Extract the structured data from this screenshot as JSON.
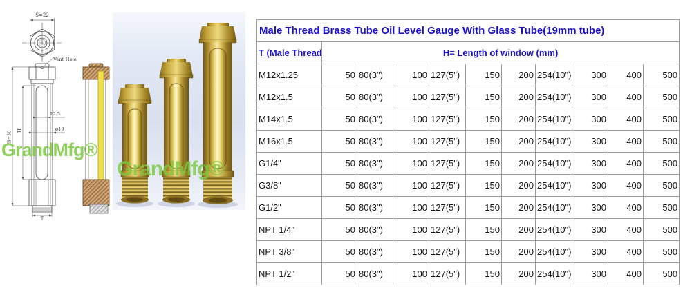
{
  "branding": {
    "watermark": "GrandMfg®",
    "watermark_color": "#7cc93e"
  },
  "diagram": {
    "dim_s": "S=22",
    "vent_label": "Vent Hole",
    "dim_window_width": "12.5",
    "dim_diameter": "ø19",
    "dim_h": "H",
    "dim_b": "B=30",
    "dim_t": "T",
    "glass_color": "#f2e14e",
    "hatch_color": "#8a4a1e"
  },
  "photo": {
    "description": "three brass oil level gauges",
    "background_color": "#dde4f2",
    "brass_color": "#caa53a"
  },
  "table": {
    "title": "Male Thread Brass Tube Oil Level Gauge With Glass Tube(19mm tube)",
    "thread_header": "T (Male Thread)",
    "window_header": "H= Length of window (mm)",
    "title_color": "#1a12c8",
    "border_color": "#9b9b9b",
    "rows": [
      {
        "thread": "M12x1.25",
        "values": [
          "50",
          "80(3\")",
          "100",
          "127(5\")",
          "150",
          "200",
          "254(10\")",
          "300",
          "400",
          "500"
        ]
      },
      {
        "thread": "M12x1.5",
        "values": [
          "50",
          "80(3\")",
          "100",
          "127(5\")",
          "150",
          "200",
          "254(10\")",
          "300",
          "400",
          "500"
        ]
      },
      {
        "thread": "M14x1.5",
        "values": [
          "50",
          "80(3\")",
          "100",
          "127(5\")",
          "150",
          "200",
          "254(10\")",
          "300",
          "400",
          "500"
        ]
      },
      {
        "thread": "M16x1.5",
        "values": [
          "50",
          "80(3\")",
          "100",
          "127(5\")",
          "150",
          "200",
          "254(10\")",
          "300",
          "400",
          "500"
        ]
      },
      {
        "thread": "G1/4\"",
        "values": [
          "50",
          "80(3\")",
          "100",
          "127(5\")",
          "150",
          "200",
          "254(10\")",
          "300",
          "400",
          "500"
        ]
      },
      {
        "thread": "G3/8\"",
        "values": [
          "50",
          "80(3\")",
          "100",
          "127(5\")",
          "150",
          "200",
          "254(10\")",
          "300",
          "400",
          "500"
        ]
      },
      {
        "thread": "G1/2\"",
        "values": [
          "50",
          "80(3\")",
          "100",
          "127(5\")",
          "150",
          "200",
          "254(10\")",
          "300",
          "400",
          "500"
        ]
      },
      {
        "thread": "NPT 1/4\"",
        "values": [
          "50",
          "80(3\")",
          "100",
          "127(5\")",
          "150",
          "200",
          "254(10\")",
          "300",
          "400",
          "500"
        ]
      },
      {
        "thread": "NPT 3/8\"",
        "values": [
          "50",
          "80(3\")",
          "100",
          "127(5\")",
          "150",
          "200",
          "254(10\")",
          "300",
          "400",
          "500"
        ]
      },
      {
        "thread": "NPT 1/2\"",
        "values": [
          "50",
          "80(3\")",
          "100",
          "127(5\")",
          "150",
          "200",
          "254(10\")",
          "300",
          "400",
          "500"
        ]
      }
    ]
  }
}
